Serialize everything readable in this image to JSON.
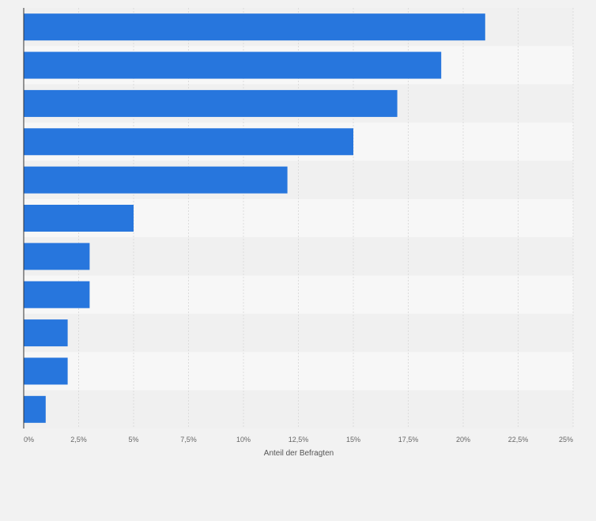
{
  "chart_data": {
    "type": "bar",
    "orientation": "horizontal",
    "categories": [
      "",
      "",
      "",
      "",
      "",
      "",
      "",
      "",
      "",
      "",
      ""
    ],
    "values": [
      21,
      19,
      17,
      15,
      12,
      5,
      3,
      3,
      2,
      2,
      1
    ],
    "xlabel": "Anteil der Befragten",
    "ylabel": "",
    "xlim": [
      0,
      25
    ],
    "ticks": [
      0,
      2.5,
      5,
      7.5,
      10,
      12.5,
      15,
      17.5,
      20,
      22.5,
      25
    ],
    "tick_labels": [
      "0%",
      "2,5%",
      "5%",
      "7,5%",
      "10%",
      "12,5%",
      "15%",
      "17,5%",
      "20%",
      "22,5%",
      "25%"
    ],
    "grid": true,
    "legend": "none"
  },
  "colors": {
    "bar": "#2776dd",
    "background": "#f2f2f2",
    "band_light": "#f7f7f7",
    "band_dark": "#f0f0f0",
    "grid": "#dcdcdc",
    "axis": "#333333"
  }
}
